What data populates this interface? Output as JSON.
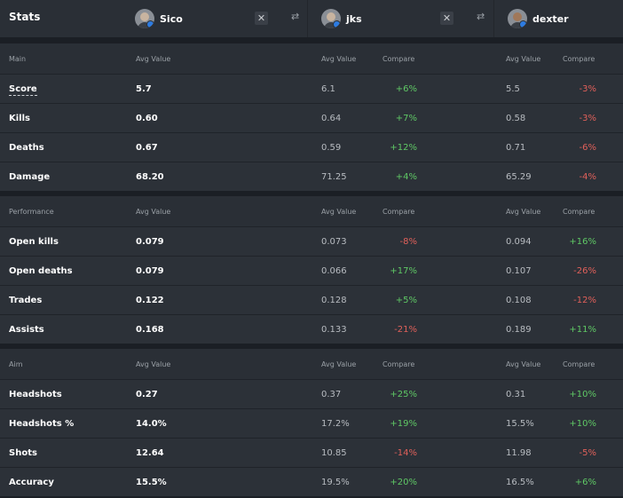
{
  "header": {
    "title": "Stats",
    "players": [
      {
        "name": "Sico"
      },
      {
        "name": "jks"
      },
      {
        "name": "dexter"
      }
    ],
    "close_glyph": "✕",
    "swap_glyph": "⇄"
  },
  "columns": {
    "avg": "Avg Value",
    "compare": "Compare"
  },
  "sections": [
    {
      "title": "Main",
      "rows": [
        {
          "label": "Score",
          "v1": "5.7",
          "v2": "6.1",
          "c2": "+6%",
          "v3": "5.5",
          "c3": "-3%"
        },
        {
          "label": "Kills",
          "v1": "0.60",
          "v2": "0.64",
          "c2": "+7%",
          "v3": "0.58",
          "c3": "-3%"
        },
        {
          "label": "Deaths",
          "v1": "0.67",
          "v2": "0.59",
          "c2": "+12%",
          "v3": "0.71",
          "c3": "-6%"
        },
        {
          "label": "Damage",
          "v1": "68.20",
          "v2": "71.25",
          "c2": "+4%",
          "v3": "65.29",
          "c3": "-4%"
        }
      ]
    },
    {
      "title": "Performance",
      "rows": [
        {
          "label": "Open kills",
          "v1": "0.079",
          "v2": "0.073",
          "c2": "-8%",
          "v3": "0.094",
          "c3": "+16%"
        },
        {
          "label": "Open deaths",
          "v1": "0.079",
          "v2": "0.066",
          "c2": "+17%",
          "v3": "0.107",
          "c3": "-26%"
        },
        {
          "label": "Trades",
          "v1": "0.122",
          "v2": "0.128",
          "c2": "+5%",
          "v3": "0.108",
          "c3": "-12%"
        },
        {
          "label": "Assists",
          "v1": "0.168",
          "v2": "0.133",
          "c2": "-21%",
          "v3": "0.189",
          "c3": "+11%"
        }
      ]
    },
    {
      "title": "Aim",
      "rows": [
        {
          "label": "Headshots",
          "v1": "0.27",
          "v2": "0.37",
          "c2": "+25%",
          "v3": "0.31",
          "c3": "+10%"
        },
        {
          "label": "Headshots %",
          "v1": "14.0%",
          "v2": "17.2%",
          "c2": "+19%",
          "v3": "15.5%",
          "c3": "+10%"
        },
        {
          "label": "Shots",
          "v1": "12.64",
          "v2": "10.85",
          "c2": "-14%",
          "v3": "11.98",
          "c3": "-5%"
        },
        {
          "label": "Accuracy",
          "v1": "15.5%",
          "v2": "19.5%",
          "c2": "+20%",
          "v3": "16.5%",
          "c3": "+6%"
        }
      ]
    }
  ],
  "colors": {
    "positive": "#5fc865",
    "negative": "#e0605a",
    "header_bg": "#2a2f36",
    "row_bg": "#2c3138"
  }
}
